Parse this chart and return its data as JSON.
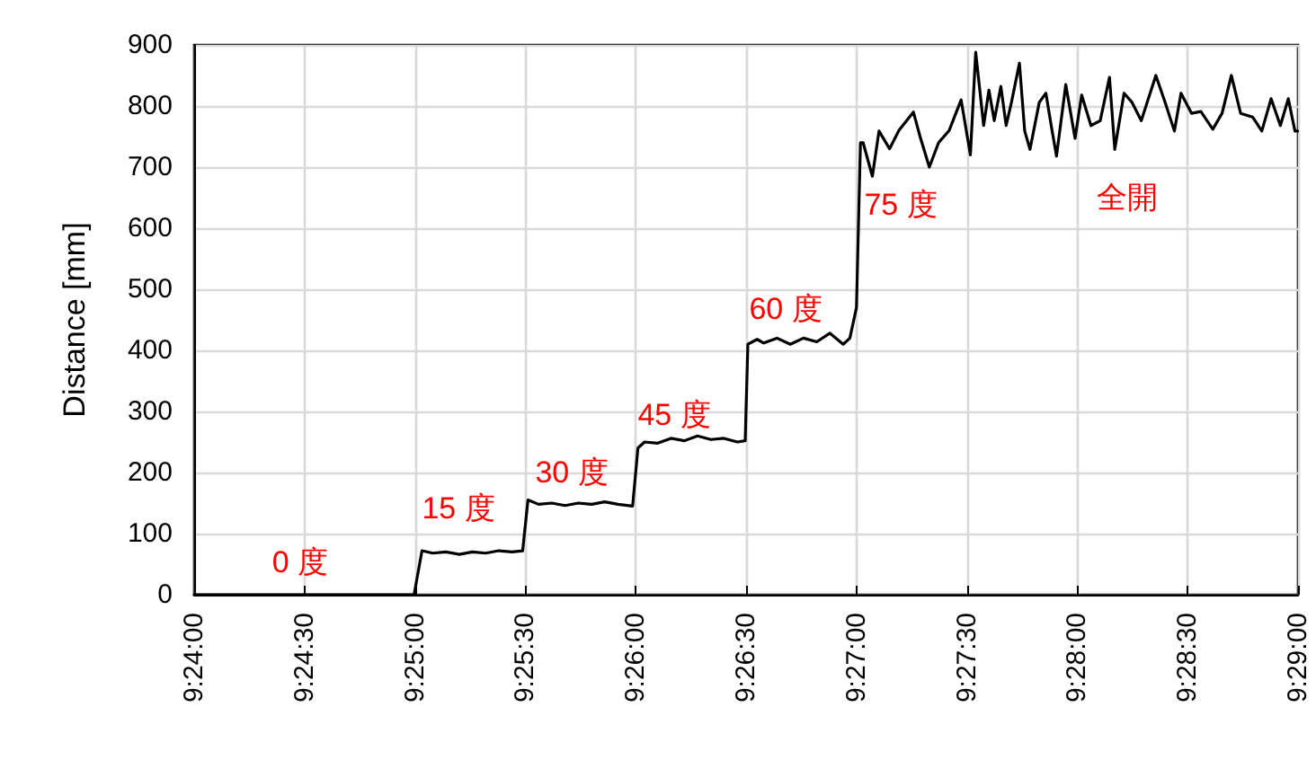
{
  "chart_data": {
    "type": "line",
    "ylabel": "Distance [mm]",
    "xlim": [
      9.4,
      9.483333
    ],
    "ylim": [
      0,
      900
    ],
    "xticks": [
      {
        "value": 9.4,
        "label": "9:24:00"
      },
      {
        "value": 9.408333,
        "label": "9:24:30"
      },
      {
        "value": 9.416667,
        "label": "9:25:00"
      },
      {
        "value": 9.425,
        "label": "9:25:30"
      },
      {
        "value": 9.433333,
        "label": "9:26:00"
      },
      {
        "value": 9.441667,
        "label": "9:26:30"
      },
      {
        "value": 9.45,
        "label": "9:27:00"
      },
      {
        "value": 9.458333,
        "label": "9:27:30"
      },
      {
        "value": 9.466667,
        "label": "9:28:00"
      },
      {
        "value": 9.475,
        "label": "9:28:30"
      },
      {
        "value": 9.483333,
        "label": "9:29:00"
      }
    ],
    "yticks": [
      0,
      100,
      200,
      300,
      400,
      500,
      600,
      700,
      800,
      900
    ],
    "grid": true,
    "marker": "none",
    "line_style": "solid",
    "annotations": [
      "0 度",
      "15 度",
      "30 度",
      "45 度",
      "60 度",
      "75 度",
      "全開"
    ],
    "series": [
      {
        "color": "#000000",
        "x": [
          9.4,
          9.405,
          9.41,
          9.4166,
          9.4172,
          9.418,
          9.419,
          9.42,
          9.421,
          9.422,
          9.423,
          9.424,
          9.4248,
          9.4252,
          9.426,
          9.427,
          9.428,
          9.429,
          9.43,
          9.431,
          9.432,
          9.4331,
          9.4335,
          9.434,
          9.435,
          9.436,
          9.437,
          9.438,
          9.439,
          9.44,
          9.441,
          9.4416,
          9.4418,
          9.4425,
          9.443,
          9.444,
          9.445,
          9.446,
          9.447,
          9.448,
          9.449,
          9.4495,
          9.45,
          9.4503,
          9.4505,
          9.4512,
          9.4517,
          9.4525,
          9.4532,
          9.4543,
          9.4548,
          9.4555,
          9.4562,
          9.457,
          9.4579,
          9.4586,
          9.459,
          9.4596,
          9.46,
          9.4604,
          9.4609,
          9.4613,
          9.4617,
          9.4623,
          9.4627,
          9.4631,
          9.4638,
          9.4643,
          9.4647,
          9.4651,
          9.4658,
          9.4665,
          9.467,
          9.4677,
          9.4684,
          9.4691,
          9.4695,
          9.4702,
          9.4708,
          9.4715,
          9.4726,
          9.4733,
          9.474,
          9.4745,
          9.4753,
          9.476,
          9.4769,
          9.4776,
          9.4783,
          9.479,
          9.4799,
          9.4806,
          9.4813,
          9.482,
          9.4826,
          9.4831,
          9.4833
        ],
        "values": [
          0,
          0,
          0,
          0,
          72,
          68,
          70,
          66,
          70,
          68,
          72,
          70,
          72,
          155,
          148,
          150,
          146,
          150,
          148,
          152,
          148,
          145,
          240,
          250,
          248,
          256,
          252,
          260,
          254,
          256,
          250,
          252,
          410,
          418,
          412,
          420,
          410,
          420,
          414,
          428,
          410,
          420,
          470,
          740,
          740,
          685,
          759,
          730,
          760,
          790,
          750,
          700,
          740,
          760,
          810,
          720,
          888,
          768,
          826,
          776,
          832,
          768,
          806,
          870,
          759,
          729,
          806,
          821,
          768,
          718,
          835,
          747,
          818,
          768,
          776,
          847,
          729,
          821,
          806,
          776,
          850,
          806,
          759,
          821,
          788,
          791,
          762,
          788,
          850,
          788,
          782,
          759,
          812,
          768,
          812,
          759,
          759
        ]
      }
    ]
  }
}
